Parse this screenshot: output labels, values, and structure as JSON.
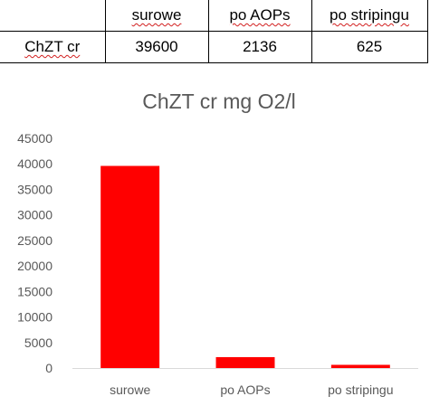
{
  "table": {
    "header": [
      "",
      "surowe",
      "po AOPs",
      "po stripingu"
    ],
    "rows": [
      {
        "label": "ChZT cr",
        "values": [
          "39600",
          "2136",
          "625"
        ]
      }
    ]
  },
  "chart_data": {
    "type": "bar",
    "title": "ChZT cr mg O2/l",
    "categories": [
      "surowe",
      "po AOPs",
      "po stripingu"
    ],
    "values": [
      39600,
      2136,
      625
    ],
    "ylim": [
      0,
      45000
    ],
    "yticks": [
      "0",
      "5000",
      "10000",
      "15000",
      "20000",
      "25000",
      "30000",
      "35000",
      "40000",
      "45000"
    ],
    "grid": false,
    "legend": "none",
    "bar_color": "#ff0000",
    "xlabel": "",
    "ylabel": ""
  }
}
